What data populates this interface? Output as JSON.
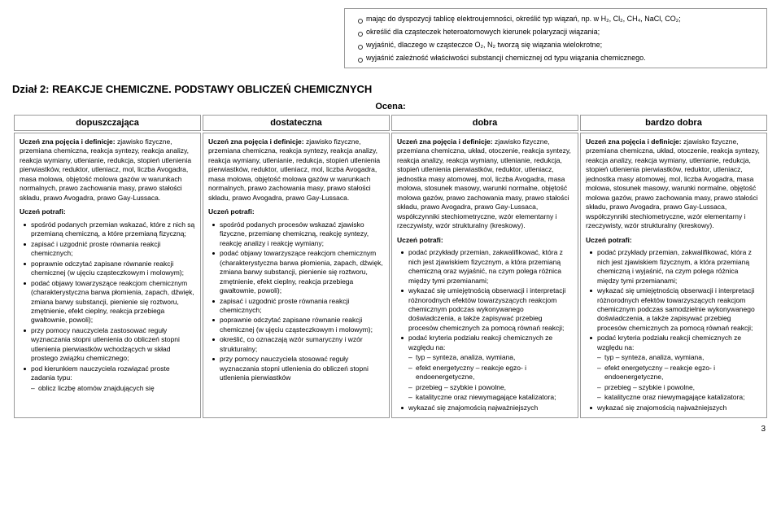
{
  "top": {
    "items": [
      "mając do dyspozycji tablicę elektroujemności, określić typ wiązań, np. w H₂, Cl₂, CH₄, NaCl, CO₂;",
      "określić dla cząsteczek heteroatomowych kierunek polaryzacji wiązania;",
      "wyjaśnić, dlaczego w cząsteczce O₂, N₂ tworzą się wiązania wielokrotne;",
      "wyjaśnić zależność właściwości substancji chemicznej od typu wiązania chemicznego."
    ]
  },
  "section_title": "Dział 2: REAKCJE CHEMICZNE. PODSTAWY OBLICZEŃ CHEMICZNYCH",
  "ocena": "Ocena:",
  "headers": [
    "dopuszczająca",
    "dostateczna",
    "dobra",
    "bardzo dobra"
  ],
  "potrafi": "Uczeń potrafi:",
  "col1": {
    "intro": "<b>Uczeń zna pojęcia i definicje:</b> zjawisko fizyczne, przemiana chemiczna, reakcja syntezy, reakcja analizy, reakcja wymiany, utlenianie, redukcja, stopień utlenienia pierwiastków, reduktor, utleniacz, mol, liczba Avogadra, masa molowa, objętość molowa gazów w warunkach normalnych, prawo zachowania masy, prawo stałości składu, prawo Avogadra, prawo Gay-Lussaca.",
    "b": [
      "spośród podanych przemian wskazać, które z nich są przemianą chemiczną, a które przemianą fizyczną;",
      "zapisać i uzgodnić proste równania reakcji chemicznych;",
      "poprawnie odczytać zapisane równanie reakcji chemicznej (w ujęciu cząsteczkowym i molowym);",
      "podać objawy towarzyszące reakcjom chemicznym (charakterystyczna barwa płomienia, zapach, dźwięk, zmiana barwy substancji, pienienie się roztworu, zmętnienie, efekt cieplny, reakcja przebiega gwałtownie, powoli);",
      "przy pomocy nauczyciela zastosować reguły wyznaczania stopni utlenienia do obliczeń stopni utlenienia pierwiastków wchodzących w skład prostego związku chemicznego;",
      "pod kierunkiem nauczyciela rozwiązać proste zadania typu:"
    ],
    "d": [
      "oblicz liczbę atomów znajdujących się"
    ]
  },
  "col2": {
    "intro": "<b>Uczeń zna pojęcia i definicje:</b> zjawisko fizyczne, przemiana chemiczna, reakcja syntezy, reakcja analizy, reakcja wymiany, utlenianie, redukcja, stopień utlenienia pierwiastków, reduktor, utleniacz, mol, liczba Avogadra, masa molowa, objętość molowa gazów w warunkach normalnych, prawo zachowania masy, prawo stałości składu, prawo Avogadra, prawo Gay-Lussaca.",
    "b": [
      "spośród podanych procesów wskazać zjawisko fizyczne, przemianę chemiczną, reakcję syntezy, reakcję analizy i reakcję wymiany;",
      "podać objawy towarzyszące reakcjom chemicznym (charakterystyczna barwa płomienia, zapach, dźwięk, zmiana barwy substancji, pienienie się roztworu, zmętnienie, efekt cieplny, reakcja przebiega gwałtownie, powoli);",
      "zapisać i uzgodnić proste równania reakcji chemicznych;",
      "poprawnie odczytać zapisane równanie reakcji chemicznej (w ujęciu cząsteczkowym i molowym);",
      "określić, co oznaczają wzór sumaryczny i wzór strukturalny;",
      "przy pomocy nauczyciela stosować reguły wyznaczania stopni utlenienia do obliczeń stopni utlenienia pierwiastków"
    ]
  },
  "col3": {
    "intro": "<b>Uczeń zna pojęcia i definicje:</b> zjawisko fizyczne, przemiana chemiczna, układ, otoczenie, reakcja syntezy, reakcja analizy, reakcja wymiany, utlenianie, redukcja, stopień utlenienia pierwiastków, reduktor, utleniacz, jednostka masy atomowej, mol, liczba Avogadra, masa molowa, stosunek masowy, warunki normalne, objętość molowa gazów, prawo zachowania masy, prawo stałości składu, prawo Avogadra, prawo Gay-Lussaca, współczynniki stechiometryczne, wzór elementarny i rzeczywisty, wzór strukturalny (kreskowy).",
    "b": [
      "podać przykłady przemian, zakwalifikować, która z nich jest zjawiskiem fizycznym, a która przemianą chemiczną oraz wyjaśnić, na czym polega różnica między tymi przemianami;",
      "wykazać się umiejętnością obserwacji i interpretacji różnorodnych efektów towarzyszących reakcjom chemicznym podczas wykonywanego doświadczenia, a także zapisywać przebieg procesów chemicznych za pomocą równań reakcji;",
      "podać kryteria podziału reakcji chemicznych ze względu na:"
    ],
    "d": [
      "typ – synteza, analiza, wymiana,",
      "efekt energetyczny – reakcje egzo- i endoenergetyczne,",
      "przebieg – szybkie i powolne,",
      "katalityczne oraz niewymagające katalizatora;"
    ],
    "b2": [
      "wykazać się znajomością najważniejszych"
    ]
  },
  "col4": {
    "intro": "<b>Uczeń zna pojęcia i definicje:</b> zjawisko fizyczne, przemiana chemiczna, układ, otoczenie, reakcja syntezy, reakcja analizy, reakcja wymiany, utlenianie, redukcja, stopień utlenienia pierwiastków, reduktor, utleniacz, jednostka masy atomowej, mol, liczba Avogadra, masa molowa, stosunek masowy, warunki normalne, objętość molowa gazów, prawo zachowania masy, prawo stałości składu, prawo Avogadra, prawo Gay-Lussaca, współczynniki stechiometryczne, wzór elementarny i rzeczywisty, wzór strukturalny (kreskowy).",
    "b": [
      "podać przykłady przemian, zakwalifikować, która z nich jest zjawiskiem fizycznym, a która przemianą chemiczną i wyjaśnić, na czym polega różnica między tymi przemianami;",
      "wykazać się umiejętnością obserwacji i interpretacji różnorodnych efektów towarzyszących reakcjom chemicznym podczas samodzielnie wykonywanego doświadczenia, a także zapisywać przebieg procesów chemicznych za pomocą równań reakcji;",
      "podać kryteria podziału reakcji chemicznych ze względu na:"
    ],
    "d": [
      "typ – synteza, analiza, wymiana,",
      "efekt energetyczny – reakcje egzo- i endoenergetyczne,",
      "przebieg – szybkie i powolne,",
      "katalityczne oraz niewymagające katalizatora;"
    ],
    "b2": [
      "wykazać się znajomością najważniejszych"
    ]
  },
  "pagenum": "3"
}
